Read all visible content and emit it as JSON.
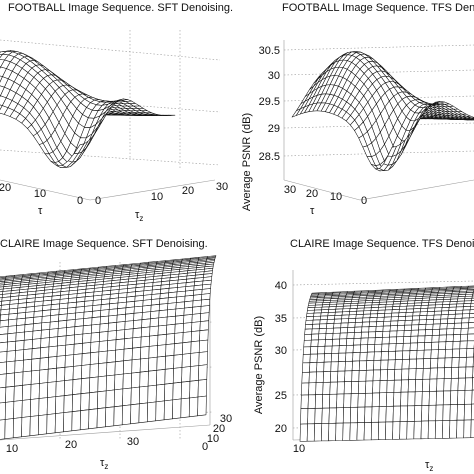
{
  "chart_data": [
    {
      "type": "surface",
      "title": "FOOTBALL Image Sequence. SFT Denoising.",
      "xlabel": "τ",
      "ylabel": "τz",
      "zlabel": "",
      "x_ticks": [
        "20",
        "10",
        "0"
      ],
      "y_ticks": [
        "0",
        "10",
        "20",
        "30"
      ],
      "z_ticks": [],
      "grid": true,
      "x_range": [
        0,
        30
      ],
      "y_range": [
        0,
        30
      ],
      "z_range": [
        28,
        30.5
      ],
      "surface_shape": "peak near small τ and mid τz, dropping to a trough at τ≈0, τz≈0"
    },
    {
      "type": "surface",
      "title": "FOOTBALL Image Sequence. TFS Denoising.",
      "xlabel": "τ",
      "ylabel": "τz",
      "zlabel": "Average PSNR (dB)",
      "x_ticks": [
        "20",
        "10",
        "0"
      ],
      "y_ticks": [
        "0",
        "10",
        "20",
        "30"
      ],
      "z_ticks": [
        "28.5",
        "29",
        "29.5",
        "30",
        "30.5"
      ],
      "grid": true,
      "x_range": [
        0,
        30
      ],
      "y_range": [
        0,
        30
      ],
      "z_range": [
        28.3,
        30.6
      ],
      "surface_shape": "peak ≈30.5 dB near small τ and mid τz, trough ≈28.3 dB at τ≈0, τz≈0"
    },
    {
      "type": "surface",
      "title": "CLAIRE Image Sequence. SFT Denoising.",
      "xlabel": "",
      "ylabel": "τz",
      "zlabel": "",
      "x_ticks": [
        "10",
        "20",
        "30"
      ],
      "y_ticks": [
        "10",
        "20",
        "30"
      ],
      "side_ticks": [
        "0",
        "10",
        "20",
        "30"
      ],
      "z_ticks": [],
      "grid": true,
      "surface_shape": "rises steeply from low values at τz≈0 to a broad plateau"
    },
    {
      "type": "surface",
      "title": "CLAIRE Image Sequence. TFS Denoising.",
      "xlabel": "",
      "ylabel": "τz",
      "zlabel": "Average PSNR (dB)",
      "x_ticks": [
        "10"
      ],
      "y_ticks": [],
      "z_ticks": [
        "20",
        "25",
        "30",
        "35",
        "40"
      ],
      "grid": true,
      "z_range": [
        17,
        41
      ],
      "surface_shape": "rises steeply from ≈17 dB at τz≈0 to a plateau ≈40 dB"
    }
  ],
  "colors": {
    "mesh": "#111111",
    "surface": "#ffffff",
    "grid": "#9a9a9a"
  }
}
